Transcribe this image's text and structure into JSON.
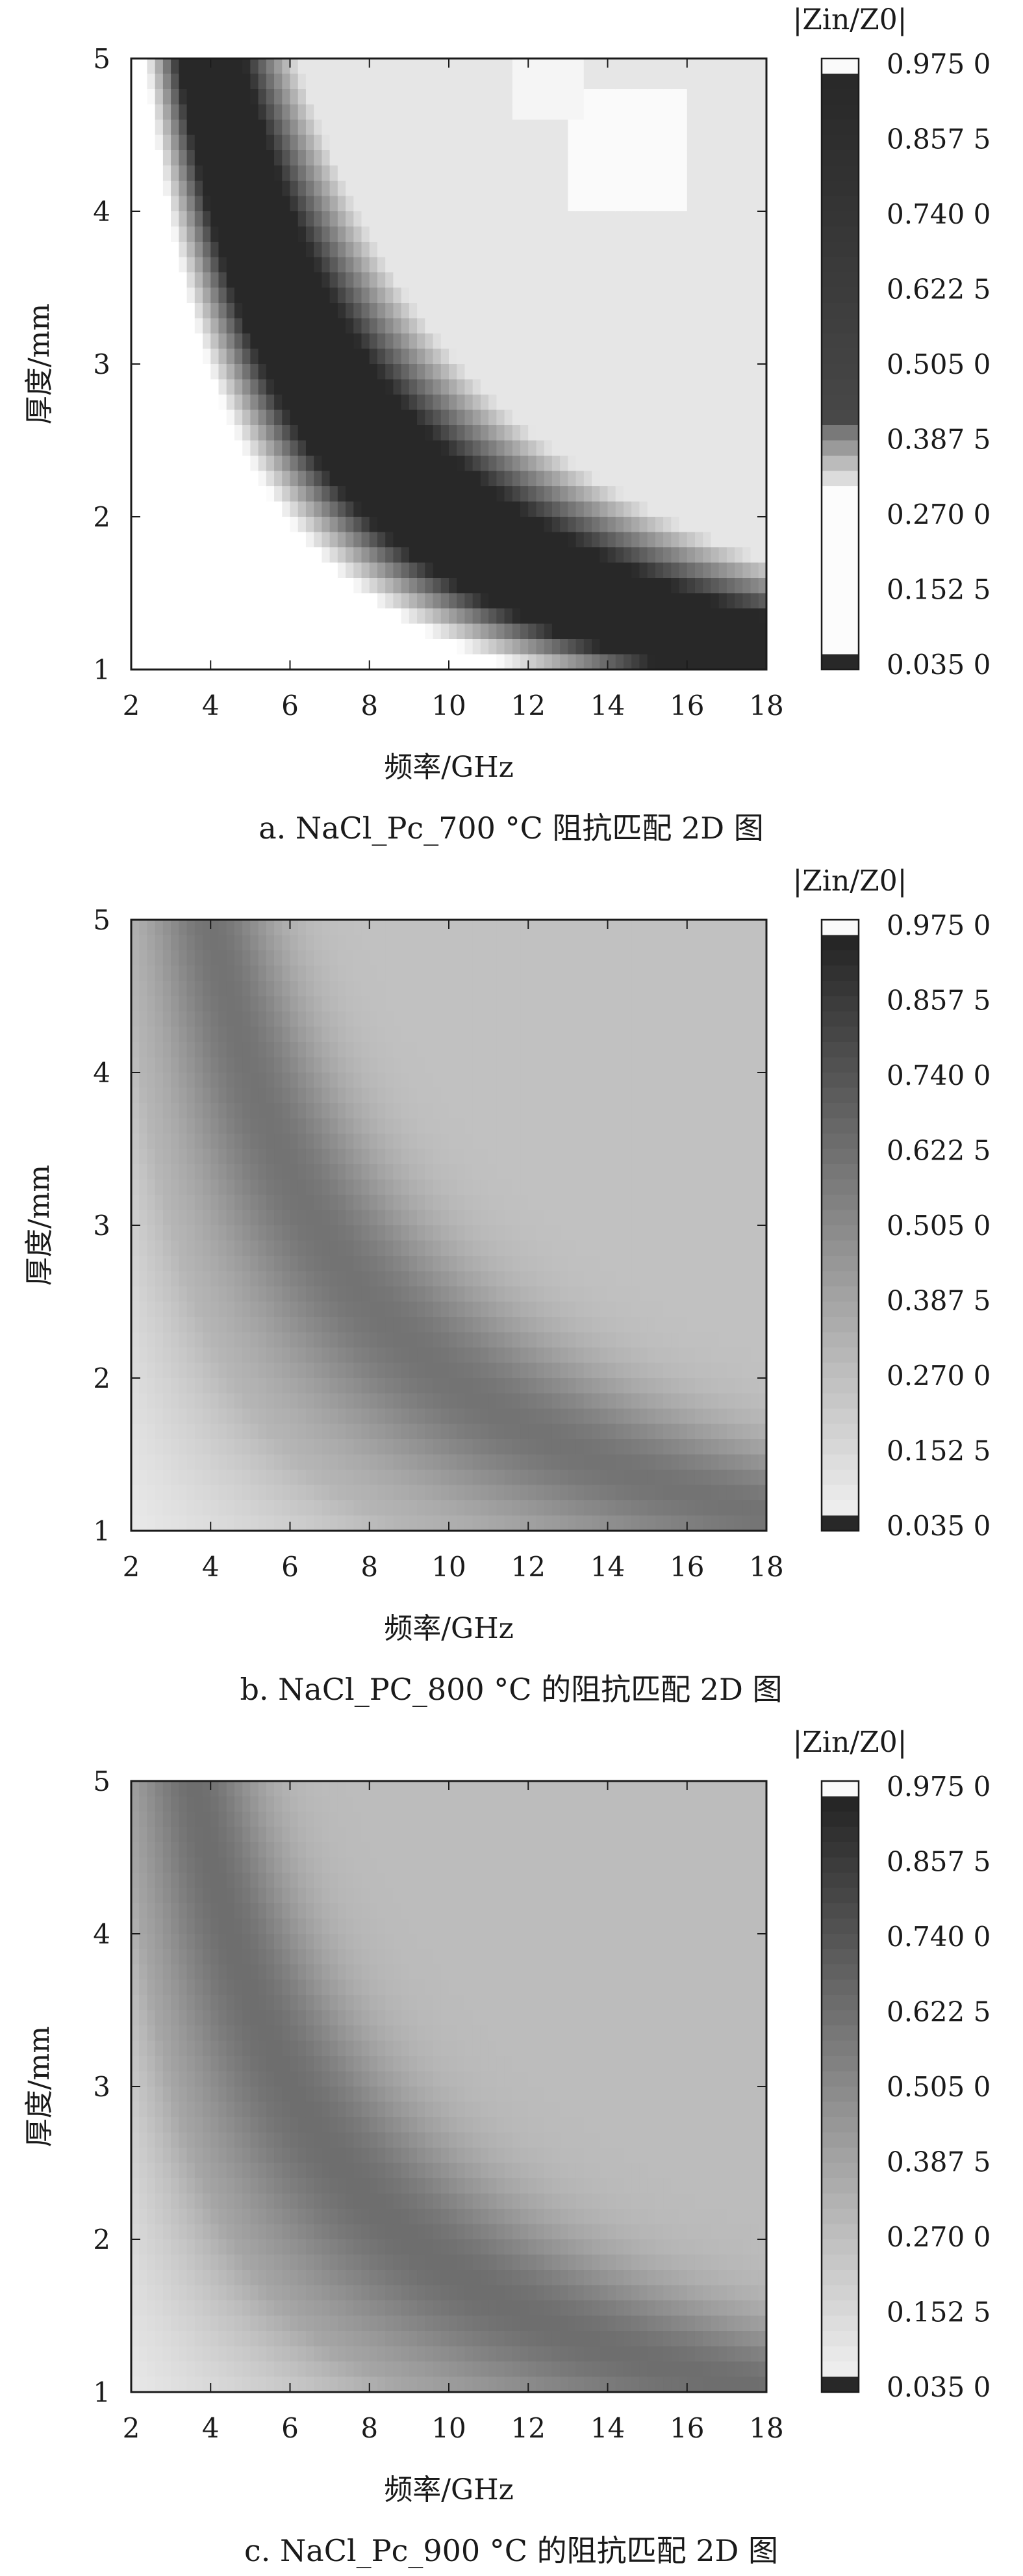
{
  "chart_data": [
    {
      "type": "heatmap",
      "id": "a",
      "caption": "a. NaCl_Pc_700 °C 阻抗匹配 2D 图",
      "xlabel": "频率/GHz",
      "ylabel": "厚度/mm",
      "xlim": [
        2,
        18
      ],
      "ylim": [
        1,
        5
      ],
      "xticks": [
        "2",
        "4",
        "6",
        "8",
        "10",
        "12",
        "14",
        "16",
        "18"
      ],
      "yticks": [
        "1",
        "2",
        "3",
        "4",
        "5"
      ],
      "colorbar_title": "|Zin/Z0|",
      "colorbar_ticks": [
        "0.975 0",
        "0.857 5",
        "0.740 0",
        "0.622 5",
        "0.505 0",
        "0.387 5",
        "0.270 0",
        "0.152 5",
        "0.035 0"
      ],
      "colorbar_range": [
        0.035,
        0.975
      ],
      "colormap": "two-sided: white at |Zin/Z0|≈0.27–0.32 and ≈0.95–0.975, dark at 0.035 and 0.4–0.9",
      "grid": false,
      "pattern": {
        "dark_band_k": 20.0,
        "dark_band_width": 1.0,
        "peak_at_k": 20.0,
        "upper_right_light": true
      }
    },
    {
      "type": "heatmap",
      "id": "b",
      "caption": "b. NaCl_PC_800 °C 的阻抗匹配 2D 图",
      "xlabel": "频率/GHz",
      "ylabel": "厚度/mm",
      "xlim": [
        2,
        18
      ],
      "ylim": [
        1,
        5
      ],
      "xticks": [
        "2",
        "4",
        "6",
        "8",
        "10",
        "12",
        "14",
        "16",
        "18"
      ],
      "yticks": [
        "1",
        "2",
        "3",
        "4",
        "5"
      ],
      "colorbar_title": "|Zin/Z0|",
      "colorbar_ticks": [
        "0.975 0",
        "0.857 5",
        "0.740 0",
        "0.622 5",
        "0.505 0",
        "0.387 5",
        "0.270 0",
        "0.152 5",
        "0.035 0"
      ],
      "colorbar_range": [
        0.035,
        0.975
      ],
      "colormap": "grayscale, light at low values, dark at high values",
      "grid": false,
      "pattern": {
        "peak_value": 0.5,
        "peak_at_k": 20.0,
        "base_value": 0.2
      }
    },
    {
      "type": "heatmap",
      "id": "c",
      "caption": "c. NaCl_Pc_900 °C 的阻抗匹配 2D 图",
      "xlabel": "频率/GHz",
      "ylabel": "厚度/mm",
      "xlim": [
        2,
        18
      ],
      "ylim": [
        1,
        5
      ],
      "xticks": [
        "2",
        "4",
        "6",
        "8",
        "10",
        "12",
        "14",
        "16",
        "18"
      ],
      "yticks": [
        "1",
        "2",
        "3",
        "4",
        "5"
      ],
      "colorbar_title": "|Zin/Z0|",
      "colorbar_ticks": [
        "0.975 0",
        "0.857 5",
        "0.740 0",
        "0.622 5",
        "0.505 0",
        "0.387 5",
        "0.270 0",
        "0.152 5",
        "0.035 0"
      ],
      "colorbar_range": [
        0.035,
        0.975
      ],
      "colormap": "grayscale, light at low values, dark at high values",
      "grid": false,
      "pattern": {
        "peak_value": 0.52,
        "peak_at_k": 18.0,
        "base_value": 0.22
      }
    }
  ]
}
